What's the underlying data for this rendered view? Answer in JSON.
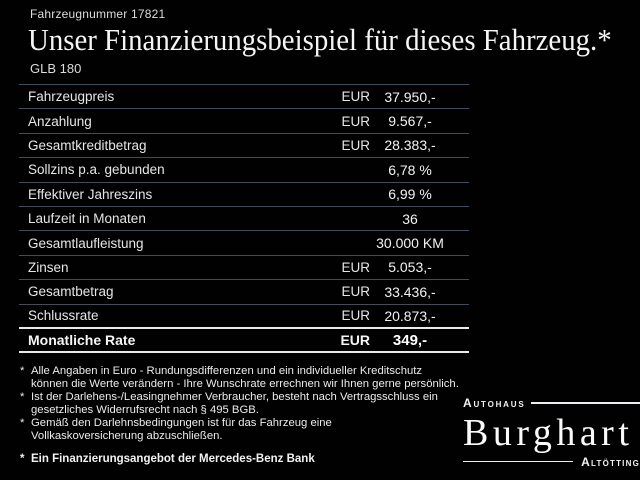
{
  "header": {
    "vehicle_number": "Fahrzeugnummer 17821",
    "title": "Unser Finanzierungsbeispiel für dieses Fahrzeug.*",
    "model": "GLB 180"
  },
  "table": {
    "rows": [
      {
        "label": "Fahrzeugpreis",
        "currency": "EUR",
        "value": "37.950,-"
      },
      {
        "label": "Anzahlung",
        "currency": "EUR",
        "value": "9.567,-"
      },
      {
        "label": "Gesamtkreditbetrag",
        "currency": "EUR",
        "value": "28.383,-"
      },
      {
        "label": "Sollzins p.a. gebunden",
        "currency": "",
        "value": "6,78 %"
      },
      {
        "label": "Effektiver Jahreszins",
        "currency": "",
        "value": "6,99 %"
      },
      {
        "label": "Laufzeit in Monaten",
        "currency": "",
        "value": "36"
      },
      {
        "label": "Gesamtlaufleistung",
        "currency": "",
        "value": "30.000 KM"
      },
      {
        "label": "Zinsen",
        "currency": "EUR",
        "value": "5.053,-"
      },
      {
        "label": "Gesamtbetrag",
        "currency": "EUR",
        "value": "33.436,-"
      },
      {
        "label": "Schlussrate",
        "currency": "EUR",
        "value": "20.873,-"
      },
      {
        "label": "Monatliche Rate",
        "currency": "EUR",
        "value": "349,-"
      }
    ]
  },
  "footnotes": [
    {
      "marker": "*",
      "lines": [
        "Alle Angaben in Euro - Rundungsdifferenzen und ein individueller Kreditschutz",
        "können die Werte verändern - Ihre Wunschrate errechnen wir Ihnen gerne persönlich."
      ]
    },
    {
      "marker": "*",
      "lines": [
        "Ist der Darlehens-/Leasingnehmer Verbraucher, besteht nach Vertragsschluss ein",
        "gesetzliches Widerrufsrecht nach § 495 BGB."
      ]
    },
    {
      "marker": "*",
      "lines": [
        "Gemäß den Darlehnsbedingungen ist für das Fahrzeug eine",
        "Vollkaskoversicherung abzuschließen."
      ]
    }
  ],
  "financing_note": {
    "marker": "*",
    "text": "Ein Finanzierungsangebot der Mercedes-Benz Bank"
  },
  "dealer_logo": {
    "top_word": "Autohaus",
    "name": "Burghart",
    "bottom_word": "Altötting"
  },
  "colors": {
    "background": "#010101",
    "text": "#f2f2f2",
    "divider": "#424d5c",
    "highlight_divider": "#e9ebed"
  }
}
